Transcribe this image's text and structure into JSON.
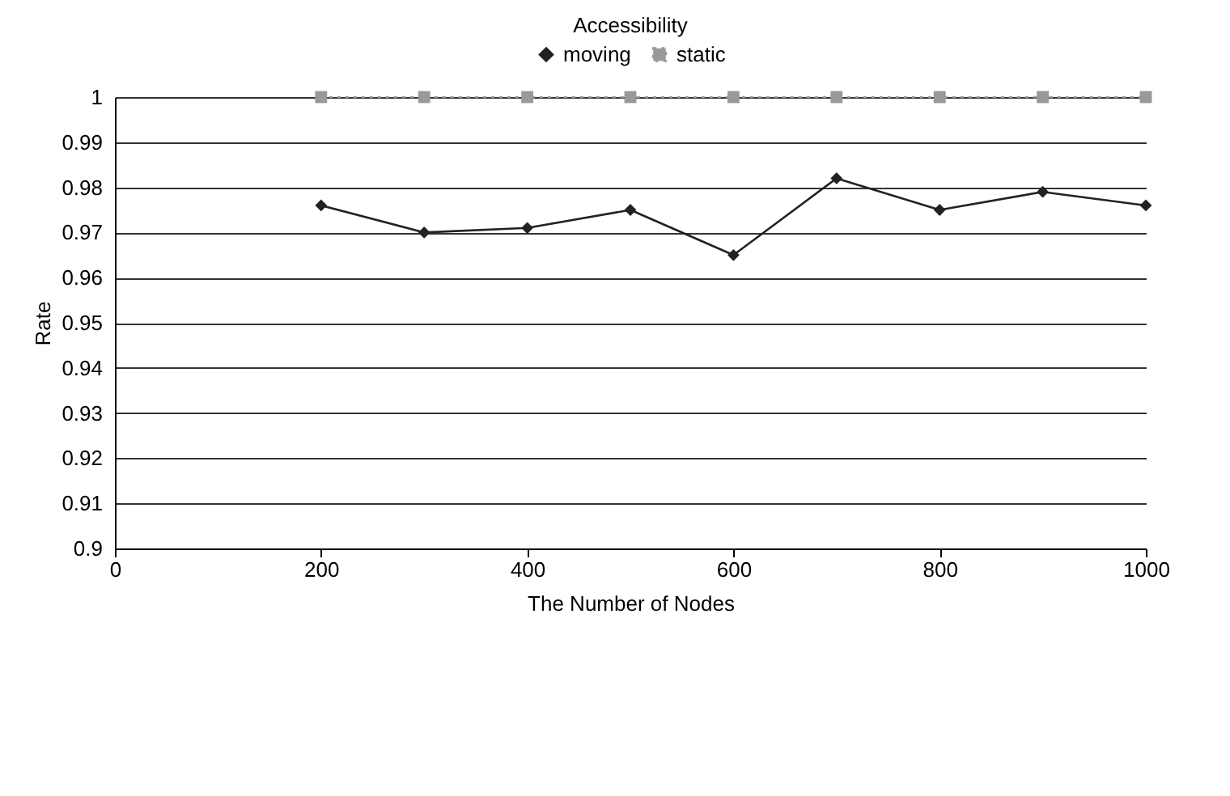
{
  "chart_data": {
    "type": "line",
    "title": "Accessibility",
    "xlabel": "The Number of Nodes",
    "ylabel": "Rate",
    "x": [
      200,
      300,
      400,
      500,
      600,
      700,
      800,
      900,
      1000
    ],
    "series": [
      {
        "name": "moving",
        "color": "#222222",
        "marker": "diamond",
        "line_style": "solid",
        "values": [
          0.976,
          0.97,
          0.971,
          0.975,
          0.965,
          0.982,
          0.975,
          0.979,
          0.976
        ]
      },
      {
        "name": "static",
        "color": "#999999",
        "marker": "square",
        "line_style": "dotted",
        "values": [
          1,
          1,
          1,
          1,
          1,
          1,
          1,
          1,
          1
        ]
      }
    ],
    "xlim": [
      0,
      1000
    ],
    "xticks": [
      0,
      200,
      400,
      600,
      800,
      1000
    ],
    "ylim": [
      0.9,
      1
    ],
    "yticks": [
      0.9,
      0.91,
      0.92,
      0.93,
      0.94,
      0.95,
      0.96,
      0.97,
      0.98,
      0.99,
      1
    ],
    "grid": "y",
    "legend": "top"
  }
}
